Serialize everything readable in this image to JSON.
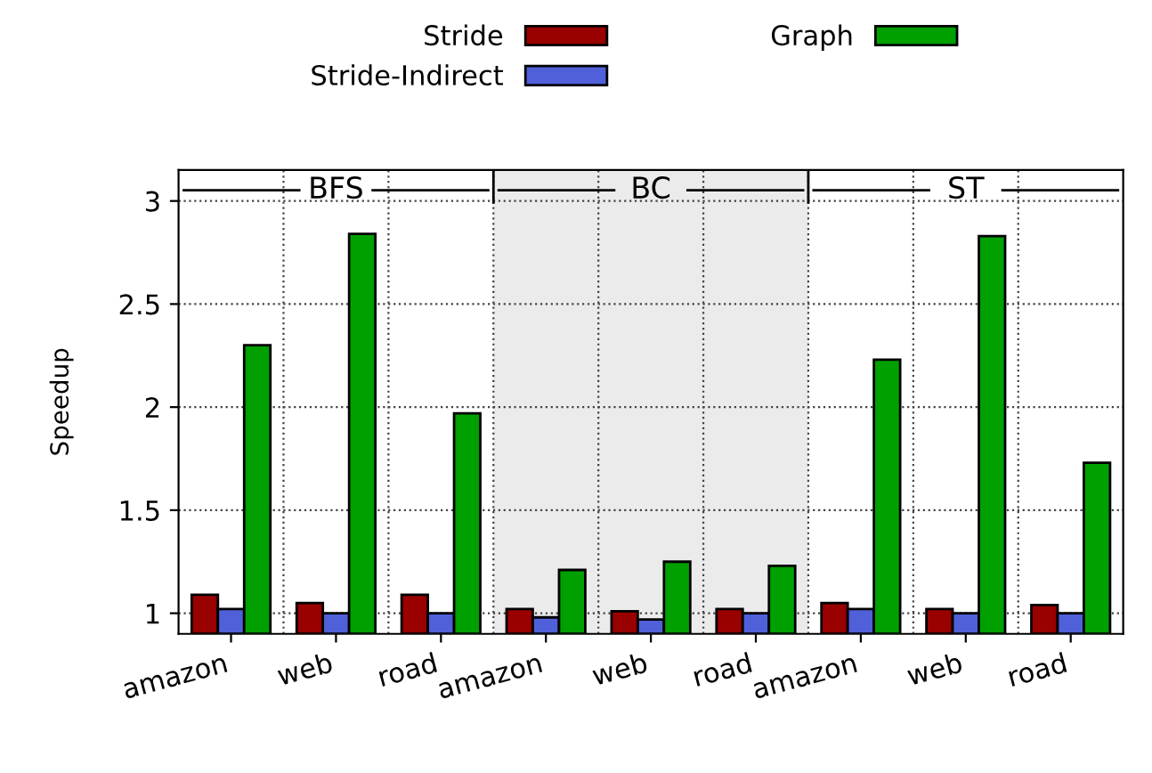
{
  "chart_data": {
    "type": "bar",
    "ylabel": "Speedup",
    "categories": [
      "amazon",
      "web",
      "road",
      "amazon",
      "web",
      "road",
      "amazon",
      "web",
      "road"
    ],
    "series": [
      {
        "name": "Stride",
        "color": "#990000",
        "values": [
          1.09,
          1.05,
          1.09,
          1.02,
          1.01,
          1.02,
          1.05,
          1.02,
          1.04
        ]
      },
      {
        "name": "Stride-Indirect",
        "color": "#5060d8",
        "values": [
          1.02,
          1.0,
          1.0,
          0.98,
          0.97,
          1.0,
          1.02,
          1.0,
          1.0
        ]
      },
      {
        "name": "Graph",
        "color": "#00a000",
        "values": [
          2.3,
          2.84,
          1.97,
          1.21,
          1.25,
          1.23,
          2.23,
          2.83,
          1.73
        ]
      }
    ],
    "annotations": [
      "BFS",
      "BC",
      "ST"
    ],
    "ylim": [
      0.9,
      3.15
    ],
    "yticks": [
      1,
      1.5,
      2,
      2.5,
      3
    ],
    "grid": true,
    "legend": "top"
  }
}
